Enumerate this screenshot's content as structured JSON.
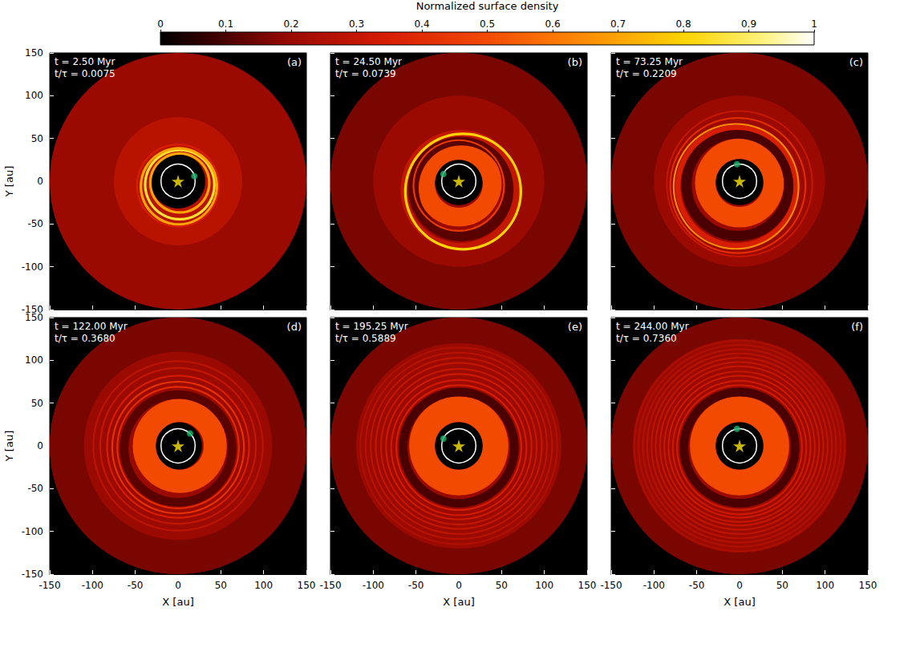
{
  "colorbar": {
    "title": "Normalized surface density",
    "range": [
      0,
      1
    ],
    "ticks": [
      0,
      0.1,
      0.2,
      0.3,
      0.4,
      0.5,
      0.6,
      0.7,
      0.8,
      0.9,
      1
    ]
  },
  "chart_data": [
    {
      "type": "density_map",
      "panel": "(a)",
      "annotations": [
        "t = 2.50 Myr",
        "t/τ = 0.0075"
      ],
      "ylabel": "Y [au]",
      "tick_labels": "y",
      "xlim": [
        -150,
        150
      ],
      "ylim": [
        -150,
        150
      ],
      "xticks": [
        -150,
        -100,
        -50,
        0,
        50,
        100,
        150
      ],
      "yticks": [
        -150,
        -100,
        -50,
        0,
        50,
        100,
        150
      ],
      "star": [
        0,
        0
      ],
      "planet": [
        19,
        6
      ],
      "orbit_radius": 20,
      "disk": [
        {
          "x0": 0,
          "y0": 0,
          "r_in": 32,
          "r_out": 150,
          "density": 0.2
        },
        {
          "x0": 0,
          "y0": 0,
          "r_in": 32,
          "r_out": 75,
          "density": 0.27
        },
        {
          "x0": 2,
          "y0": -2,
          "r_in": 33,
          "r_out": 36,
          "density": 0.7
        },
        {
          "x0": 2,
          "y0": -4,
          "r_in": 39,
          "r_out": 42,
          "density": 0.85
        },
        {
          "x0": 1,
          "y0": -6,
          "r_in": 43,
          "r_out": 46,
          "density": 0.7
        },
        {
          "x0": 0,
          "y0": -5,
          "r_in": 47,
          "r_out": 49,
          "density": 0.35
        }
      ]
    },
    {
      "type": "density_map",
      "panel": "(b)",
      "annotations": [
        "t = 24.50 Myr",
        "t/τ = 0.0739"
      ],
      "tick_labels": false,
      "xlim": [
        -150,
        150
      ],
      "ylim": [
        -150,
        150
      ],
      "xticks": [
        -150,
        -100,
        -50,
        0,
        50,
        100,
        150
      ],
      "yticks": [
        -150,
        -100,
        -50,
        0,
        50,
        100,
        150
      ],
      "star": [
        0,
        0
      ],
      "planet": [
        -18,
        8.5
      ],
      "orbit_radius": 20,
      "disk": [
        {
          "x0": 0,
          "y0": 0,
          "r_in": 28,
          "r_out": 150,
          "density": 0.2
        },
        {
          "x0": 0,
          "y0": 0,
          "r_in": 100,
          "r_out": 150,
          "density": 0.16
        },
        {
          "x0": 0,
          "y0": -3,
          "r_in": 28,
          "r_out": 50,
          "density": 0.5
        },
        {
          "x0": 3,
          "y0": -8,
          "r_in": 50,
          "r_out": 62,
          "density": 0.12
        },
        {
          "x0": 0,
          "y0": -5,
          "r_in": 52,
          "r_out": 54,
          "density": 0.45
        },
        {
          "x0": 2,
          "y0": -10,
          "r_in": 62,
          "r_out": 70,
          "density": 0.3
        },
        {
          "x0": 5,
          "y0": -12,
          "r_in": 66,
          "r_out": 69,
          "density": 0.8
        }
      ]
    },
    {
      "type": "density_map",
      "panel": "(c)",
      "annotations": [
        "t = 73.25 Myr",
        "t/τ = 0.2209"
      ],
      "tick_labels": false,
      "xlim": [
        -150,
        150
      ],
      "ylim": [
        -150,
        150
      ],
      "xticks": [
        -150,
        -100,
        -50,
        0,
        50,
        100,
        150
      ],
      "yticks": [
        -150,
        -100,
        -50,
        0,
        50,
        100,
        150
      ],
      "star": [
        0,
        0
      ],
      "planet": [
        -3,
        20
      ],
      "orbit_radius": 20,
      "disk": [
        {
          "x0": 0,
          "y0": 0,
          "r_in": 28,
          "r_out": 150,
          "density": 0.2
        },
        {
          "x0": 0,
          "y0": 0,
          "r_in": 100,
          "r_out": 150,
          "density": 0.16
        },
        {
          "x0": 0,
          "y0": -2,
          "r_in": 28,
          "r_out": 52,
          "density": 0.5
        },
        {
          "x0": -2,
          "y0": -4,
          "r_in": 54,
          "r_out": 66,
          "density": 0.1
        },
        {
          "x0": -3,
          "y0": -6,
          "r_in": 66,
          "r_out": 72,
          "density": 0.35
        },
        {
          "x0": -4,
          "y0": -6,
          "r_in": 72,
          "r_out": 74,
          "density": 0.65
        },
        {
          "x0": -2,
          "y0": -5,
          "r_in": 78,
          "r_out": 80,
          "density": 0.4
        },
        {
          "x0": 0,
          "y0": -3,
          "r_in": 84,
          "r_out": 86,
          "density": 0.3
        }
      ]
    },
    {
      "type": "density_map",
      "panel": "(d)",
      "annotations": [
        "t = 122.00 Myr",
        "t/τ = 0.3680"
      ],
      "xlabel": "X [au]",
      "ylabel": "Y [au]",
      "tick_labels": true,
      "xlim": [
        -150,
        150
      ],
      "ylim": [
        -150,
        150
      ],
      "xticks": [
        -150,
        -100,
        -50,
        0,
        50,
        100,
        150
      ],
      "yticks": [
        -150,
        -100,
        -50,
        0,
        50,
        100,
        150
      ],
      "star": [
        0,
        0
      ],
      "planet": [
        14,
        14.5
      ],
      "orbit_radius": 20,
      "disk": [
        {
          "x0": 0,
          "y0": 0,
          "r_in": 28,
          "r_out": 150,
          "density": 0.2
        },
        {
          "x0": 0,
          "y0": 0,
          "r_in": 110,
          "r_out": 150,
          "density": 0.16
        },
        {
          "x0": 2,
          "y0": 0,
          "r_in": 28,
          "r_out": 55,
          "density": 0.5
        },
        {
          "x0": 0,
          "y0": -3,
          "r_in": 58,
          "r_out": 68,
          "density": 0.12
        },
        {
          "x0": 0,
          "y0": -2,
          "r_in": 70,
          "r_out": 72,
          "density": 0.4
        },
        {
          "x0": 0,
          "y0": -2,
          "r_in": 76,
          "r_out": 78,
          "density": 0.42
        },
        {
          "x0": 0,
          "y0": -1,
          "r_in": 82,
          "r_out": 84,
          "density": 0.35
        },
        {
          "x0": 0,
          "y0": 0,
          "r_in": 90,
          "r_out": 92,
          "density": 0.3
        },
        {
          "x0": 0,
          "y0": 0,
          "r_in": 98,
          "r_out": 100,
          "density": 0.28
        }
      ]
    },
    {
      "type": "density_map",
      "panel": "(e)",
      "annotations": [
        "t = 195.25 Myr",
        "t/τ = 0.5889"
      ],
      "xlabel": "X [au]",
      "tick_labels": "x",
      "xlim": [
        -150,
        150
      ],
      "ylim": [
        -150,
        150
      ],
      "xticks": [
        -150,
        -100,
        -50,
        0,
        50,
        100,
        150
      ],
      "yticks": [
        -150,
        -100,
        -50,
        0,
        50,
        100,
        150
      ],
      "star": [
        0,
        0
      ],
      "planet": [
        -18,
        8.5
      ],
      "orbit_radius": 20,
      "disk": [
        {
          "x0": 0,
          "y0": 0,
          "r_in": 28,
          "r_out": 150,
          "density": 0.2
        },
        {
          "x0": 0,
          "y0": 0,
          "r_in": 120,
          "r_out": 150,
          "density": 0.16
        },
        {
          "x0": 0,
          "y0": 0,
          "r_in": 28,
          "r_out": 58,
          "density": 0.5
        },
        {
          "x0": 0,
          "y0": -2,
          "r_in": 60,
          "r_out": 70,
          "density": 0.1
        },
        {
          "x0": 0,
          "y0": -2,
          "r_in": 72,
          "r_out": 74,
          "density": 0.35
        },
        {
          "x0": 0,
          "y0": -2,
          "r_in": 78,
          "r_out": 80,
          "density": 0.33
        },
        {
          "x0": 0,
          "y0": -1,
          "r_in": 84,
          "r_out": 86,
          "density": 0.32
        },
        {
          "x0": 0,
          "y0": -1,
          "r_in": 90,
          "r_out": 92,
          "density": 0.3
        },
        {
          "x0": 0,
          "y0": 0,
          "r_in": 96,
          "r_out": 98,
          "density": 0.3
        },
        {
          "x0": 0,
          "y0": 0,
          "r_in": 102,
          "r_out": 104,
          "density": 0.28
        },
        {
          "x0": 0,
          "y0": 0,
          "r_in": 108,
          "r_out": 110,
          "density": 0.27
        },
        {
          "x0": 0,
          "y0": 0,
          "r_in": 114,
          "r_out": 116,
          "density": 0.25
        }
      ]
    },
    {
      "type": "density_map",
      "panel": "(f)",
      "annotations": [
        "t = 244.00 Myr",
        "t/τ = 0.7360"
      ],
      "xlabel": "X [au]",
      "tick_labels": "x",
      "xlim": [
        -150,
        150
      ],
      "ylim": [
        -150,
        150
      ],
      "xticks": [
        -150,
        -100,
        -50,
        0,
        50,
        100,
        150
      ],
      "yticks": [
        -150,
        -100,
        -50,
        0,
        50,
        100,
        150
      ],
      "star": [
        0,
        0
      ],
      "planet": [
        -3,
        20
      ],
      "orbit_radius": 20,
      "disk": [
        {
          "x0": 0,
          "y0": 0,
          "r_in": 28,
          "r_out": 150,
          "density": 0.2
        },
        {
          "x0": 0,
          "y0": 0,
          "r_in": 125,
          "r_out": 150,
          "density": 0.16
        },
        {
          "x0": 0,
          "y0": 0,
          "r_in": 28,
          "r_out": 58,
          "density": 0.5
        },
        {
          "x0": 0,
          "y0": -2,
          "r_in": 60,
          "r_out": 70,
          "density": 0.1
        },
        {
          "x0": 0,
          "y0": -2,
          "r_in": 72,
          "r_out": 74,
          "density": 0.33
        },
        {
          "x0": 0,
          "y0": -2,
          "r_in": 77,
          "r_out": 79,
          "density": 0.32
        },
        {
          "x0": 0,
          "y0": -1,
          "r_in": 82,
          "r_out": 84,
          "density": 0.32
        },
        {
          "x0": 0,
          "y0": -1,
          "r_in": 87,
          "r_out": 89,
          "density": 0.3
        },
        {
          "x0": 0,
          "y0": 0,
          "r_in": 92,
          "r_out": 94,
          "density": 0.3
        },
        {
          "x0": 0,
          "y0": 0,
          "r_in": 97,
          "r_out": 99,
          "density": 0.29
        },
        {
          "x0": 0,
          "y0": 0,
          "r_in": 102,
          "r_out": 104,
          "density": 0.28
        },
        {
          "x0": 0,
          "y0": 0,
          "r_in": 107,
          "r_out": 109,
          "density": 0.27
        },
        {
          "x0": 0,
          "y0": 0,
          "r_in": 112,
          "r_out": 114,
          "density": 0.26
        },
        {
          "x0": 0,
          "y0": 0,
          "r_in": 117,
          "r_out": 119,
          "density": 0.25
        },
        {
          "x0": 0,
          "y0": 0,
          "r_in": 122,
          "r_out": 124,
          "density": 0.24
        }
      ]
    }
  ]
}
